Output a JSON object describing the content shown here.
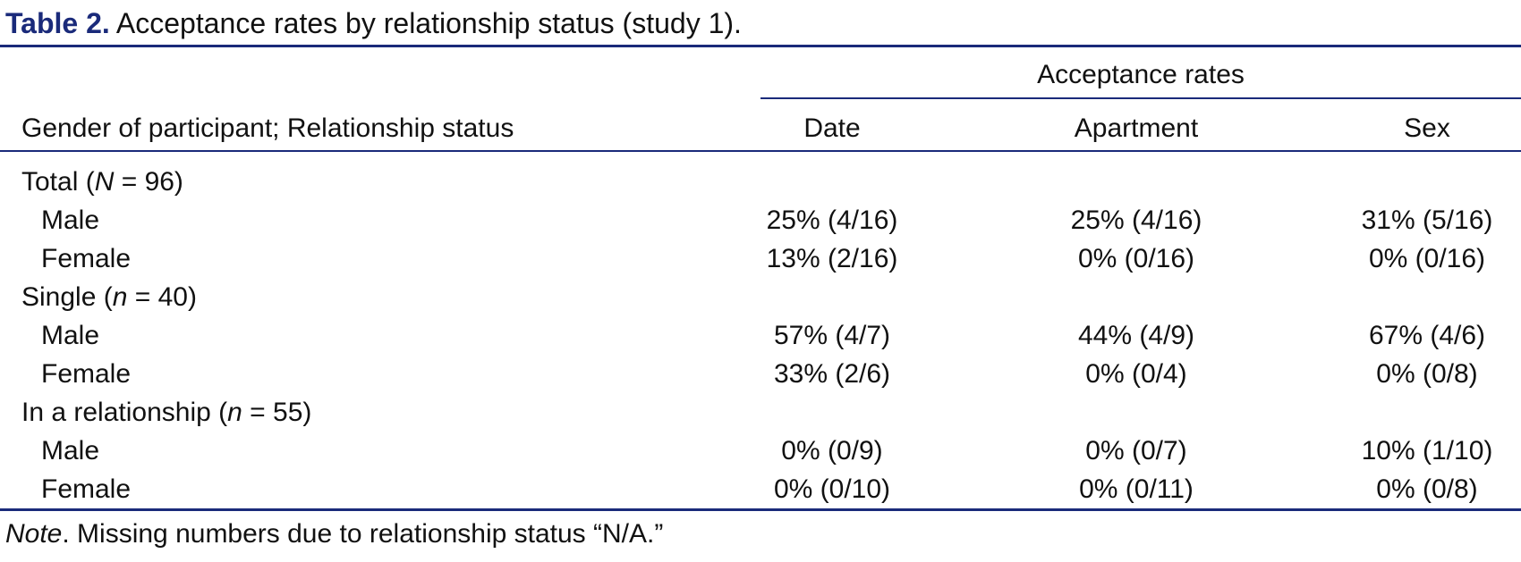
{
  "caption": {
    "label": "Table 2.",
    "text": "Acceptance rates by relationship status (study 1)."
  },
  "header": {
    "group": "Acceptance rates",
    "stub": "Gender of participant; Relationship status",
    "columns": [
      "Date",
      "Apartment",
      "Sex"
    ]
  },
  "groups": [
    {
      "label": "Total (",
      "stat": "N",
      "count": " = 96)",
      "rows": [
        {
          "label": "Male",
          "values": [
            "25% (4/16)",
            "25% (4/16)",
            "31% (5/16)"
          ]
        },
        {
          "label": "Female",
          "values": [
            "13% (2/16)",
            "0% (0/16)",
            "0% (0/16)"
          ]
        }
      ]
    },
    {
      "label": "Single (",
      "stat": "n",
      "count": " = 40)",
      "rows": [
        {
          "label": "Male",
          "values": [
            "57% (4/7)",
            "44% (4/9)",
            "67% (4/6)"
          ]
        },
        {
          "label": "Female",
          "values": [
            "33% (2/6)",
            "0% (0/4)",
            "0% (0/8)"
          ]
        }
      ]
    },
    {
      "label": "In a relationship (",
      "stat": "n",
      "count": " = 55)",
      "rows": [
        {
          "label": "Male",
          "values": [
            "0% (0/9)",
            "0% (0/7)",
            "10% (1/10)"
          ]
        },
        {
          "label": "Female",
          "values": [
            "0% (0/10)",
            "0% (0/11)",
            "0% (0/8)"
          ]
        }
      ]
    }
  ],
  "note": {
    "label": "Note",
    "text": ". Missing numbers due to relationship status “N/A.”"
  },
  "colors": {
    "accent": "#1a2a7a",
    "text": "#111111"
  }
}
